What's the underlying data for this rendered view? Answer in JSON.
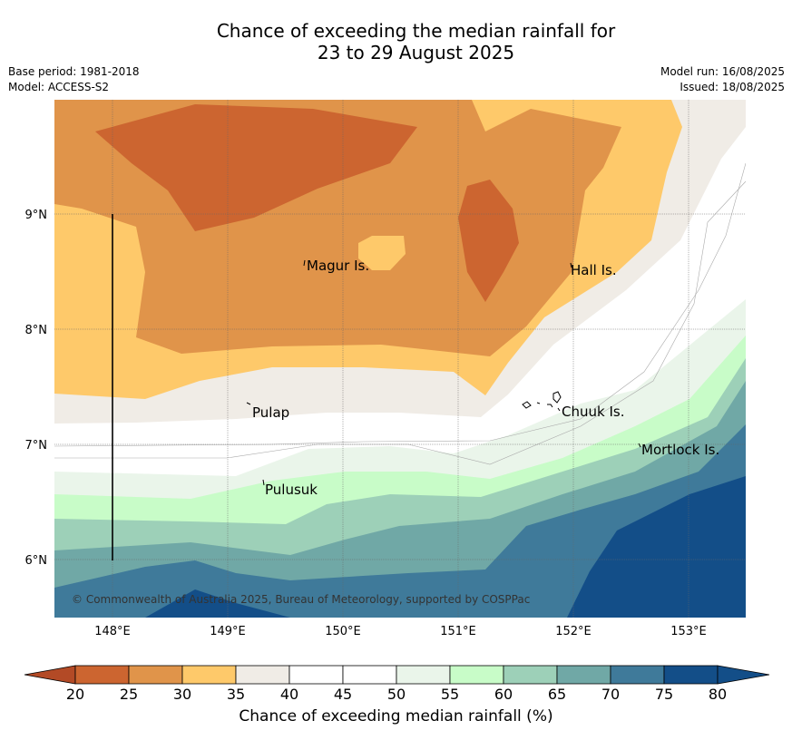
{
  "header": {
    "title_line1": "Chance of exceeding the median rainfall for",
    "title_line2": "23 to 29 August 2025",
    "base_period": "Base period: 1981-2018",
    "model": "Model: ACCESS-S2",
    "model_run": "Model run: 16/08/2025",
    "issued": "Issued: 18/08/2025"
  },
  "map": {
    "latitude_labels": [
      "9°N",
      "8°N",
      "7°N",
      "6°N"
    ],
    "longitude_labels": [
      "148°E",
      "149°E",
      "150°E",
      "151°E",
      "152°E",
      "153°E"
    ],
    "places": [
      "Magur Is.",
      "Hall Is.",
      "Pulap",
      "Chuuk Is.",
      "Mortlock Is.",
      "Pulusuk"
    ],
    "copyright": "© Commonwealth of Australia 2025, Bureau of Meteorology, supported by COSPPac"
  },
  "colorbar": {
    "ticks": [
      "20",
      "25",
      "30",
      "35",
      "40",
      "45",
      "50",
      "55",
      "60",
      "65",
      "70",
      "75",
      "80"
    ],
    "colors": [
      "#b34a26",
      "#cc6530",
      "#e0944a",
      "#fec96a",
      "#f0ece6",
      "#ffffff",
      "#ffffff",
      "#eaf5ea",
      "#c8fcc8",
      "#9dd0b8",
      "#70a8a6",
      "#3f7a9a",
      "#134e88"
    ],
    "label": "Chance of exceeding median rainfall (%)"
  }
}
